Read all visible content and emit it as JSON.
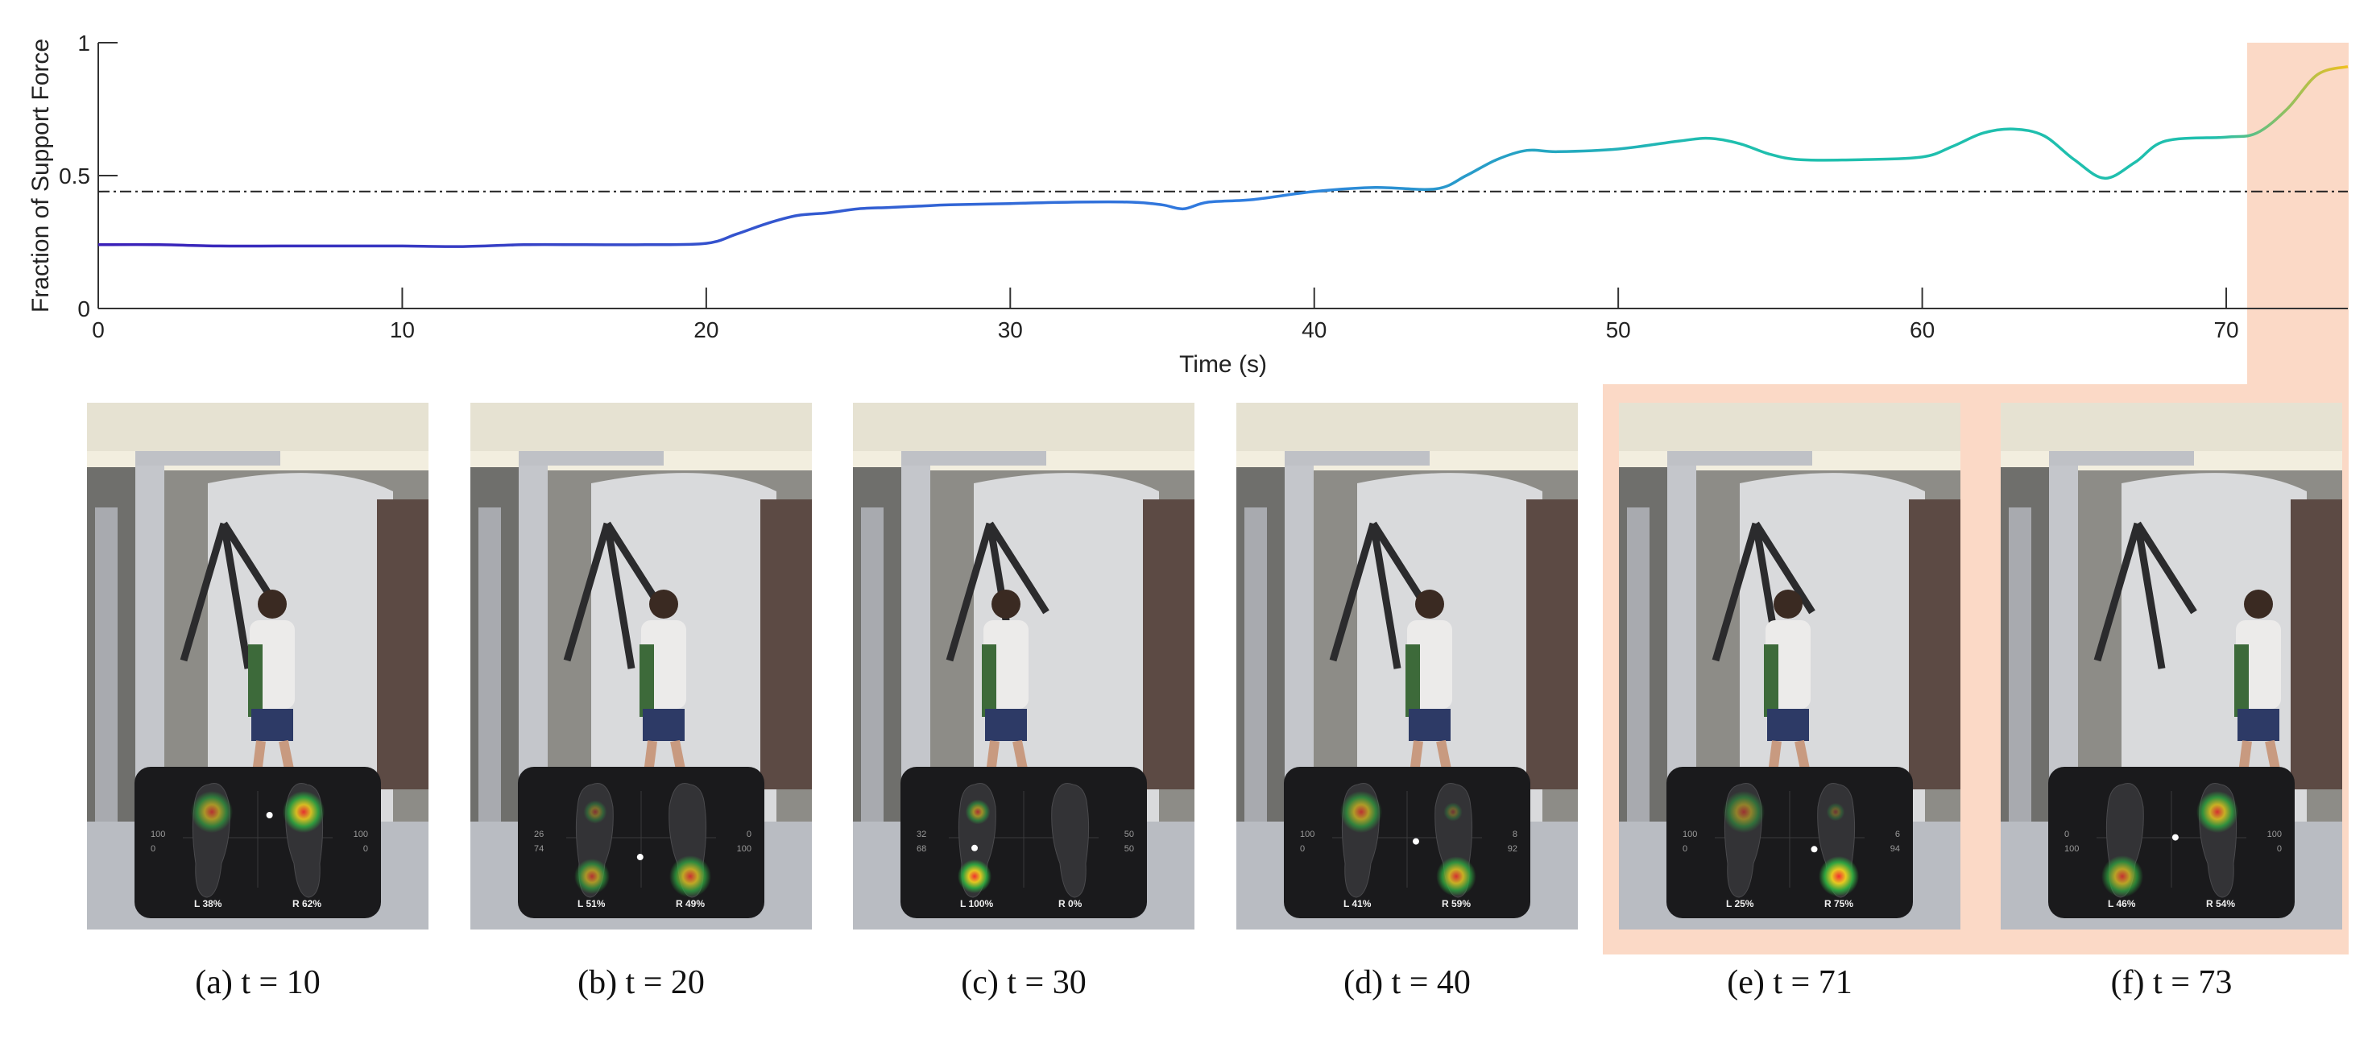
{
  "colors": {
    "highlight": "#fbd9c6",
    "line_start": "#3a1fb8",
    "line_mid": "#2f7fe0",
    "line_teal": "#1fbfae",
    "line_end": "#f0c020",
    "threshold": "#222222"
  },
  "chart_data": {
    "type": "line",
    "xlabel": "Time (s)",
    "ylabel": "Fraction of Support Force",
    "xlim": [
      0,
      74
    ],
    "ylim": [
      0,
      1
    ],
    "xticks": [
      0,
      10,
      20,
      30,
      40,
      50,
      60,
      70
    ],
    "yticks": [
      0,
      0.5,
      1
    ],
    "grid": false,
    "threshold_y": 0.44,
    "highlight_x": [
      71,
      74
    ],
    "x": [
      0,
      2,
      4,
      6,
      8,
      10,
      12,
      14,
      16,
      18,
      20,
      21,
      22,
      23,
      24,
      25,
      26,
      27,
      28,
      30,
      32,
      34,
      35,
      35.7,
      36.5,
      38,
      40,
      42,
      44,
      45,
      46,
      47,
      48,
      50,
      52,
      53,
      54,
      55,
      56,
      58,
      60,
      61,
      62,
      63,
      64,
      65,
      66,
      67,
      68,
      70,
      71,
      72,
      73,
      74
    ],
    "y": [
      0.24,
      0.24,
      0.235,
      0.235,
      0.235,
      0.235,
      0.233,
      0.24,
      0.24,
      0.24,
      0.245,
      0.28,
      0.32,
      0.35,
      0.36,
      0.375,
      0.38,
      0.385,
      0.39,
      0.395,
      0.4,
      0.4,
      0.39,
      0.375,
      0.4,
      0.41,
      0.44,
      0.455,
      0.45,
      0.5,
      0.56,
      0.595,
      0.59,
      0.6,
      0.63,
      0.64,
      0.62,
      0.58,
      0.56,
      0.56,
      0.57,
      0.61,
      0.66,
      0.675,
      0.65,
      0.56,
      0.49,
      0.55,
      0.63,
      0.645,
      0.66,
      0.75,
      0.88,
      0.91
    ]
  },
  "frames": [
    {
      "caption": "(a) t = 10",
      "left_top": "100",
      "left_bottom": "0",
      "right_top": "100",
      "right_bottom": "0",
      "left_pct": "38",
      "right_pct": "62"
    },
    {
      "caption": "(b) t = 20",
      "left_top": "26",
      "left_bottom": "74",
      "right_top": "0",
      "right_bottom": "100",
      "left_pct": "51",
      "right_pct": "49"
    },
    {
      "caption": "(c) t = 30",
      "left_top": "32",
      "left_bottom": "68",
      "right_top": "50",
      "right_bottom": "50",
      "left_pct": "100",
      "right_pct": "0"
    },
    {
      "caption": "(d) t = 40",
      "left_top": "100",
      "left_bottom": "0",
      "right_top": "8",
      "right_bottom": "92",
      "left_pct": "41",
      "right_pct": "59"
    },
    {
      "caption": "(e) t = 71",
      "left_top": "100",
      "left_bottom": "0",
      "right_top": "6",
      "right_bottom": "94",
      "left_pct": "25",
      "right_pct": "75"
    },
    {
      "caption": "(f) t = 73",
      "left_top": "0",
      "left_bottom": "100",
      "right_top": "100",
      "right_bottom": "0",
      "left_pct": "46",
      "right_pct": "54"
    }
  ]
}
